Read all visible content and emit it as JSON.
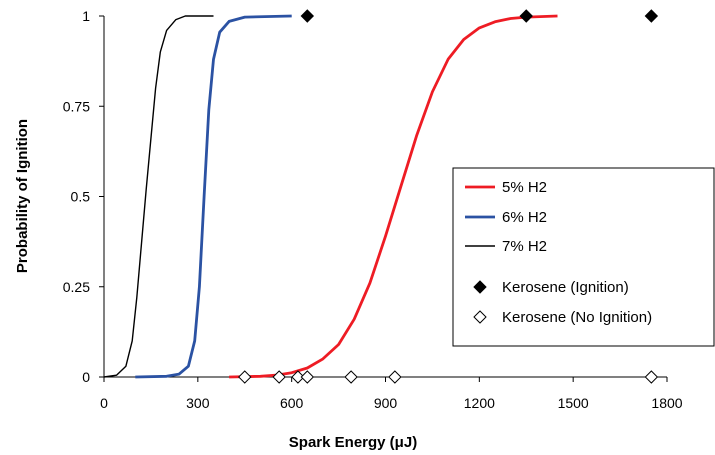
{
  "chart_data": {
    "type": "line",
    "xlabel": "Spark Energy (μJ)",
    "ylabel": "Probability of Ignition",
    "xlim": [
      0,
      1800
    ],
    "ylim": [
      0,
      1
    ],
    "x_ticks": [
      0,
      300,
      600,
      900,
      1200,
      1500,
      1800
    ],
    "x_tick_labels": [
      "0",
      "300",
      "600",
      "900",
      "1200",
      "1500",
      "1800"
    ],
    "y_ticks": [
      0,
      0.25,
      0.5,
      0.75,
      1
    ],
    "y_tick_labels": [
      "0",
      "0.25",
      "0.5",
      "0.75",
      "1"
    ],
    "grid": false,
    "legend_position": "right",
    "series": [
      {
        "name": "5% H2",
        "kind": "line",
        "color": "#ee1c24",
        "points": [
          [
            400,
            0
          ],
          [
            500,
            0.002
          ],
          [
            550,
            0.005
          ],
          [
            600,
            0.012
          ],
          [
            650,
            0.025
          ],
          [
            700,
            0.05
          ],
          [
            750,
            0.09
          ],
          [
            800,
            0.16
          ],
          [
            850,
            0.26
          ],
          [
            900,
            0.39
          ],
          [
            950,
            0.53
          ],
          [
            1000,
            0.67
          ],
          [
            1050,
            0.79
          ],
          [
            1100,
            0.88
          ],
          [
            1150,
            0.935
          ],
          [
            1200,
            0.967
          ],
          [
            1250,
            0.984
          ],
          [
            1300,
            0.993
          ],
          [
            1350,
            0.997
          ],
          [
            1450,
            1
          ]
        ]
      },
      {
        "name": "6% H2",
        "kind": "line",
        "color": "#2b52a3",
        "points": [
          [
            100,
            0
          ],
          [
            200,
            0.002
          ],
          [
            240,
            0.008
          ],
          [
            270,
            0.03
          ],
          [
            290,
            0.1
          ],
          [
            305,
            0.25
          ],
          [
            320,
            0.5
          ],
          [
            335,
            0.74
          ],
          [
            350,
            0.88
          ],
          [
            370,
            0.955
          ],
          [
            400,
            0.985
          ],
          [
            450,
            0.997
          ],
          [
            600,
            1
          ]
        ]
      },
      {
        "name": "7% H2",
        "kind": "line",
        "color": "#000000",
        "points": [
          [
            0,
            0
          ],
          [
            40,
            0.005
          ],
          [
            70,
            0.03
          ],
          [
            90,
            0.1
          ],
          [
            105,
            0.22
          ],
          [
            120,
            0.37
          ],
          [
            135,
            0.52
          ],
          [
            150,
            0.66
          ],
          [
            165,
            0.8
          ],
          [
            180,
            0.9
          ],
          [
            200,
            0.96
          ],
          [
            230,
            0.99
          ],
          [
            260,
            1
          ],
          [
            350,
            1
          ]
        ]
      },
      {
        "name": "Kerosene (Ignition)",
        "kind": "marker",
        "marker": "filled-diamond",
        "color": "#000000",
        "points": [
          [
            650,
            1
          ],
          [
            1350,
            1
          ],
          [
            1750,
            1
          ]
        ]
      },
      {
        "name": "Kerosene (No Ignition)",
        "kind": "marker",
        "marker": "open-diamond",
        "color": "#000000",
        "points": [
          [
            450,
            0
          ],
          [
            560,
            0
          ],
          [
            620,
            0
          ],
          [
            650,
            0
          ],
          [
            790,
            0
          ],
          [
            930,
            0
          ],
          [
            1750,
            0
          ]
        ]
      }
    ]
  }
}
